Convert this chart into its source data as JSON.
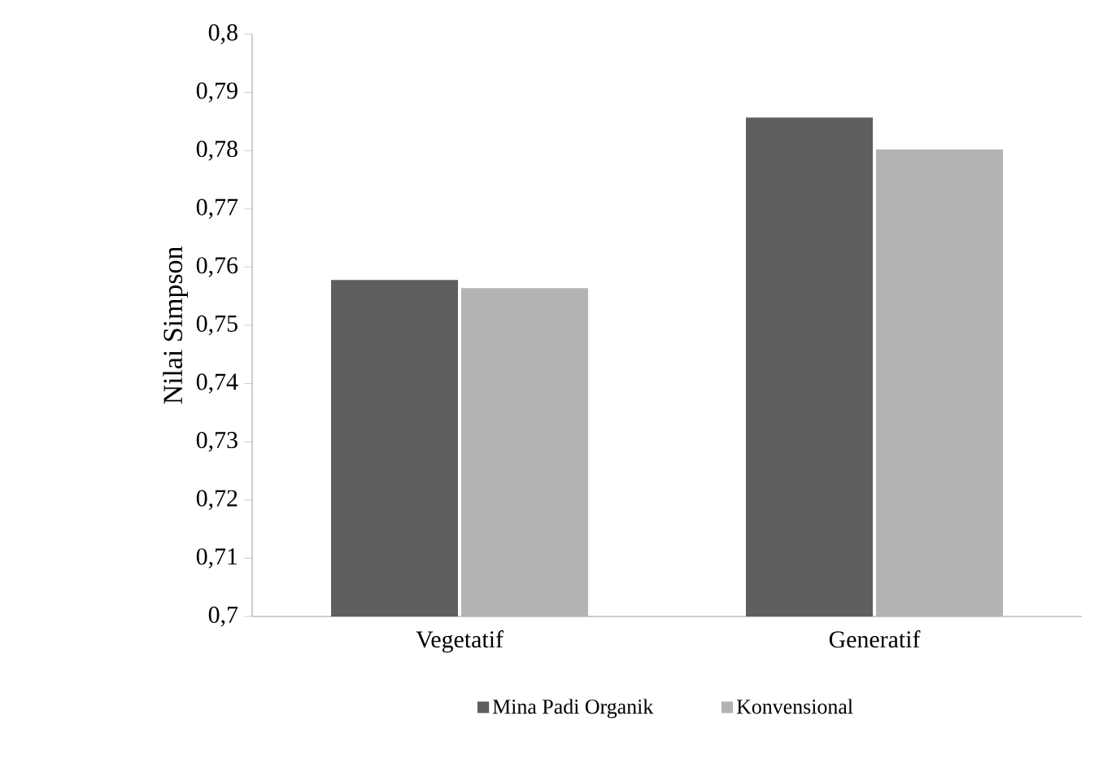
{
  "chart_data": {
    "type": "bar",
    "ylabel": "Nilai Simpson",
    "categories": [
      "Vegetatif",
      "Generatif"
    ],
    "series": [
      {
        "name": "Mina Padi Organik",
        "color": "#5f5f5f",
        "values": [
          0.7578,
          0.7857
        ]
      },
      {
        "name": "Konvensional",
        "color": "#b3b3b3",
        "values": [
          0.7564,
          0.7802
        ]
      }
    ],
    "ylim": [
      0.7,
      0.8
    ],
    "yticks": [
      {
        "value": 0.7,
        "label": "0,7"
      },
      {
        "value": 0.71,
        "label": "0,71"
      },
      {
        "value": 0.72,
        "label": "0,72"
      },
      {
        "value": 0.73,
        "label": "0,73"
      },
      {
        "value": 0.74,
        "label": "0,74"
      },
      {
        "value": 0.75,
        "label": "0,75"
      },
      {
        "value": 0.76,
        "label": "0,76"
      },
      {
        "value": 0.77,
        "label": "0,77"
      },
      {
        "value": 0.78,
        "label": "0,78"
      },
      {
        "value": 0.79,
        "label": "0,79"
      },
      {
        "value": 0.8,
        "label": "0,8"
      }
    ],
    "grid": false,
    "legend": "bottom"
  }
}
